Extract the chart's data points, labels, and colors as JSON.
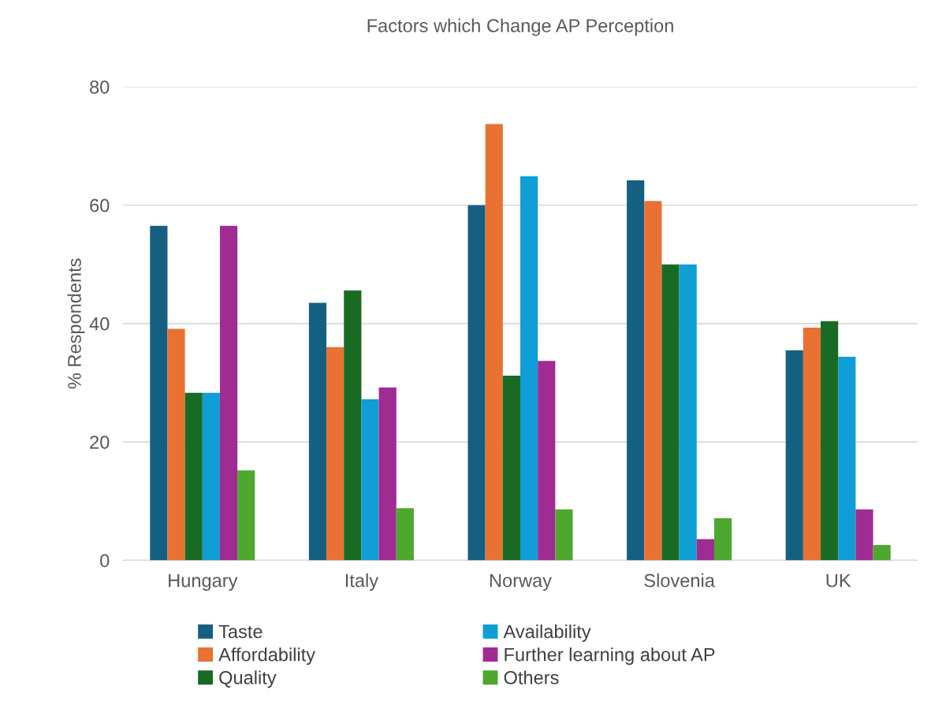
{
  "chart_data": {
    "type": "bar",
    "title": "Factors which Change AP Perception",
    "ylabel": "% Respondents",
    "categories": [
      "Hungary",
      "Italy",
      "Norway",
      "Slovenia",
      "UK"
    ],
    "series": [
      {
        "name": "Taste",
        "color": "#156082",
        "values": [
          56.5,
          43.5,
          60.0,
          64.2,
          35.5
        ]
      },
      {
        "name": "Affordability",
        "color": "#e97132",
        "values": [
          39.1,
          36.0,
          73.7,
          60.7,
          39.3
        ]
      },
      {
        "name": "Quality",
        "color": "#196b24",
        "values": [
          28.3,
          45.6,
          31.2,
          50.0,
          40.4
        ]
      },
      {
        "name": "Availability",
        "color": "#0f9ed5",
        "values": [
          28.3,
          27.2,
          64.9,
          50.0,
          34.4
        ]
      },
      {
        "name": "Further learning about AP",
        "color": "#a02b93",
        "values": [
          56.5,
          29.2,
          33.7,
          3.6,
          8.6
        ]
      },
      {
        "name": "Others",
        "color": "#4ea72e",
        "values": [
          15.2,
          8.8,
          8.6,
          7.1,
          2.6
        ]
      }
    ],
    "ylim": [
      0,
      80
    ],
    "yticks": [
      0,
      20,
      40,
      60,
      80
    ],
    "grid": "y",
    "legend": "bottom"
  }
}
